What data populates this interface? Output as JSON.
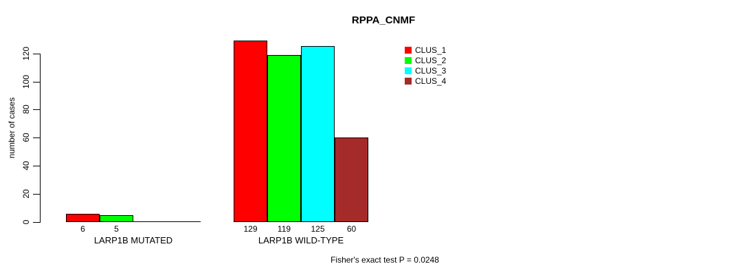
{
  "page": {
    "title": "RPPA_CNMF",
    "footnote": "Fisher's exact test P = 0.0248"
  },
  "axis": {
    "ylabel": "number of cases"
  },
  "legend": {
    "items": [
      {
        "label": "CLUS_1",
        "color": "#ff0000"
      },
      {
        "label": "CLUS_2",
        "color": "#00ff00"
      },
      {
        "label": "CLUS_3",
        "color": "#00ffff"
      },
      {
        "label": "CLUS_4",
        "color": "#a52a2a"
      }
    ]
  },
  "chart_data": {
    "type": "bar",
    "title": "RPPA_CNMF",
    "ylabel": "number of cases",
    "xlabel": "",
    "ylim": [
      0,
      130
    ],
    "yticks": [
      0,
      20,
      40,
      60,
      80,
      100,
      120
    ],
    "grid": false,
    "legend_position": "top-right",
    "categories": [
      "LARP1B MUTATED",
      "LARP1B WILD-TYPE"
    ],
    "series": [
      {
        "name": "CLUS_1",
        "color": "#ff0000",
        "values": [
          6,
          129
        ]
      },
      {
        "name": "CLUS_2",
        "color": "#00ff00",
        "values": [
          5,
          119
        ]
      },
      {
        "name": "CLUS_3",
        "color": "#00ffff",
        "values": [
          0,
          125
        ]
      },
      {
        "name": "CLUS_4",
        "color": "#a52a2a",
        "values": [
          0,
          60
        ]
      }
    ],
    "bar_value_labels": {
      "LARP1B MUTATED": [
        "6",
        "5",
        "",
        ""
      ],
      "LARP1B WILD-TYPE": [
        "129",
        "119",
        "125",
        "60"
      ]
    },
    "annotation": "Fisher's exact test P = 0.0248"
  }
}
